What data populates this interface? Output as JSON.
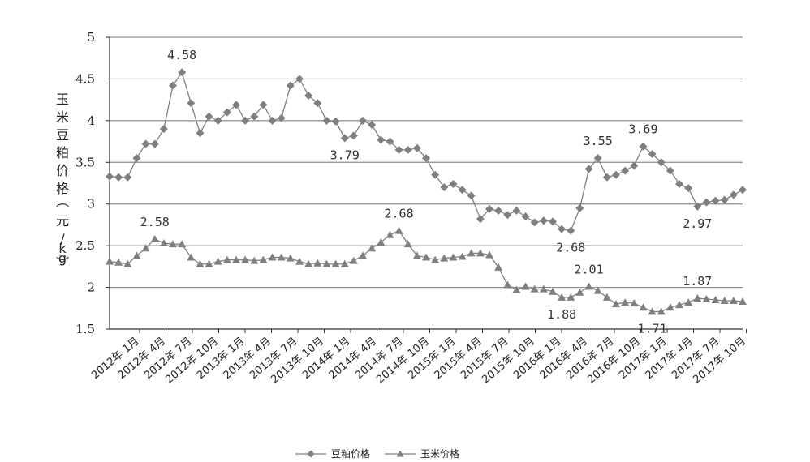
{
  "chart_data": {
    "type": "line",
    "title": "",
    "xlabel": "",
    "ylabel": "玉米豆粕价格（元/kg）",
    "ylim": [
      1.5,
      5
    ],
    "yticks": [
      "1.5",
      "2",
      "2.5",
      "3",
      "3.5",
      "4",
      "4.5",
      "5"
    ],
    "grid": true,
    "legend_position": "bottom",
    "x_tick_labels": [
      "2012年 1月",
      "2012年 4月",
      "2012年 7月",
      "2012年 10月",
      "2013年 1月",
      "2013年 4月",
      "2013年 7月",
      "2013年 10月",
      "2014年 1月",
      "2014年 4月",
      "2014年 7月",
      "2014年 10月",
      "2015年 1月",
      "2015年 4月",
      "2015年 7月",
      "2015年 10月",
      "2016年 1月",
      "2016年 4月",
      "2016年 7月",
      "2016年 10月",
      "2017年 1月",
      "2017年 4月",
      "2017年 7月",
      "2017年 10月"
    ],
    "series": [
      {
        "name": "豆粕价格",
        "marker": "diamond",
        "color": "#808080",
        "values": [
          3.33,
          3.32,
          3.32,
          3.55,
          3.72,
          3.72,
          3.9,
          4.42,
          4.58,
          4.21,
          3.85,
          4.05,
          4.0,
          4.1,
          4.19,
          4.0,
          4.05,
          4.19,
          4.0,
          4.03,
          4.42,
          4.5,
          4.3,
          4.21,
          4.0,
          3.99,
          3.79,
          3.82,
          4.0,
          3.95,
          3.77,
          3.75,
          3.65,
          3.65,
          3.67,
          3.55,
          3.35,
          3.2,
          3.24,
          3.17,
          3.1,
          2.82,
          2.94,
          2.92,
          2.87,
          2.92,
          2.85,
          2.78,
          2.8,
          2.79,
          2.7,
          2.68,
          2.95,
          3.42,
          3.55,
          3.32,
          3.35,
          3.4,
          3.46,
          3.69,
          3.6,
          3.5,
          3.4,
          3.24,
          3.19,
          2.97,
          3.02,
          3.04,
          3.05,
          3.11,
          3.17
        ]
      },
      {
        "name": "玉米价格",
        "marker": "triangle",
        "color": "#808080",
        "values": [
          2.31,
          2.3,
          2.28,
          2.38,
          2.47,
          2.58,
          2.53,
          2.52,
          2.52,
          2.36,
          2.28,
          2.28,
          2.31,
          2.33,
          2.33,
          2.33,
          2.32,
          2.33,
          2.36,
          2.36,
          2.35,
          2.31,
          2.28,
          2.29,
          2.28,
          2.28,
          2.28,
          2.32,
          2.38,
          2.47,
          2.54,
          2.63,
          2.68,
          2.52,
          2.38,
          2.36,
          2.33,
          2.35,
          2.36,
          2.37,
          2.41,
          2.41,
          2.39,
          2.24,
          2.03,
          1.97,
          2.01,
          1.98,
          1.98,
          1.95,
          1.88,
          1.88,
          1.94,
          2.01,
          1.96,
          1.88,
          1.8,
          1.82,
          1.81,
          1.76,
          1.71,
          1.71,
          1.76,
          1.79,
          1.82,
          1.87,
          1.86,
          1.85,
          1.84,
          1.84,
          1.83
        ]
      }
    ],
    "annotations": [
      {
        "text": "4.58",
        "series": 0,
        "index": 8,
        "pos": "above"
      },
      {
        "text": "3.79",
        "series": 0,
        "index": 26,
        "pos": "below"
      },
      {
        "text": "2.68",
        "series": 0,
        "index": 51,
        "pos": "below"
      },
      {
        "text": "3.55",
        "series": 0,
        "index": 54,
        "pos": "above"
      },
      {
        "text": "3.69",
        "series": 0,
        "index": 59,
        "pos": "above"
      },
      {
        "text": "2.97",
        "series": 0,
        "index": 65,
        "pos": "below"
      },
      {
        "text": "2.58",
        "series": 1,
        "index": 5,
        "pos": "above"
      },
      {
        "text": "2.68",
        "series": 1,
        "index": 32,
        "pos": "above"
      },
      {
        "text": "1.88",
        "series": 1,
        "index": 50,
        "pos": "below"
      },
      {
        "text": "2.01",
        "series": 1,
        "index": 53,
        "pos": "above"
      },
      {
        "text": "1.71",
        "series": 1,
        "index": 60,
        "pos": "below"
      },
      {
        "text": "1.87",
        "series": 1,
        "index": 65,
        "pos": "above"
      }
    ]
  }
}
